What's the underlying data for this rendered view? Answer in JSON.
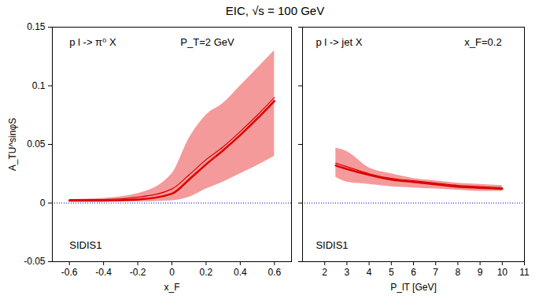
{
  "title": "EIC, √s = 100 GeV",
  "chart_data": [
    {
      "type": "line",
      "xlabel": "x_F",
      "ylabel": "A_TU^sinφS",
      "x": [
        -0.6,
        -0.4,
        -0.2,
        0,
        0.1,
        0.2,
        0.3,
        0.4,
        0.5,
        0.6
      ],
      "series": [
        {
          "color": "#dd0000",
          "values": [
            0.002,
            0.002,
            0.003,
            0.008,
            0.02,
            0.033,
            0.045,
            0.058,
            0.072,
            0.087
          ]
        },
        {
          "color": "#dd0000",
          "values": [
            0.003,
            0.003,
            0.005,
            0.012,
            0.024,
            0.037,
            0.048,
            0.061,
            0.075,
            0.09
          ]
        }
      ],
      "band": {
        "color": "#f07878",
        "lower": [
          0.001,
          0.001,
          0.001,
          0.002,
          0.005,
          0.012,
          0.018,
          0.025,
          0.032,
          0.04
        ],
        "upper": [
          0.003,
          0.004,
          0.008,
          0.025,
          0.055,
          0.075,
          0.085,
          0.1,
          0.115,
          0.13
        ]
      },
      "hline": {
        "value": 0,
        "color": "#0000cc",
        "line_style": "dotted"
      },
      "xlim": [
        -0.7,
        0.7
      ],
      "xticks": [
        -0.6,
        -0.4,
        -0.2,
        0,
        0.2,
        0.4,
        0.6
      ],
      "ylim": [
        -0.05,
        0.15
      ],
      "yticks": [
        -0.05,
        0,
        0.05,
        0.1,
        0.15
      ],
      "annotations": [
        {
          "text": "p l -> π⁰ X",
          "x": -0.6,
          "y": 0.137
        },
        {
          "text": "P_T=2 GeV",
          "x": 0.05,
          "y": 0.137
        },
        {
          "text": "SIDIS1",
          "x": -0.6,
          "y": -0.036
        }
      ]
    },
    {
      "type": "line",
      "xlabel": "P_lT [GeV]",
      "x": [
        2.5,
        3,
        4,
        5,
        6,
        7,
        8,
        9,
        10
      ],
      "series": [
        {
          "color": "#dd0000",
          "values": [
            0.032,
            0.029,
            0.024,
            0.02,
            0.018,
            0.016,
            0.014,
            0.013,
            0.012
          ]
        },
        {
          "color": "#dd0000",
          "values": [
            0.034,
            0.031,
            0.025,
            0.021,
            0.019,
            0.017,
            0.015,
            0.014,
            0.013
          ]
        }
      ],
      "band": {
        "color": "#f07878",
        "lower": [
          0.022,
          0.018,
          0.016,
          0.014,
          0.013,
          0.012,
          0.011,
          0.01,
          0.01
        ],
        "upper": [
          0.047,
          0.044,
          0.03,
          0.025,
          0.021,
          0.019,
          0.017,
          0.016,
          0.015
        ]
      },
      "hline": {
        "value": 0,
        "color": "#0000cc",
        "line_style": "dotted"
      },
      "xlim": [
        1,
        11
      ],
      "xticks": [
        2,
        3,
        4,
        5,
        6,
        7,
        8,
        9,
        10,
        11
      ],
      "ylim": [
        -0.05,
        0.15
      ],
      "yticks": [
        -0.05,
        0,
        0.05,
        0.1,
        0.15
      ],
      "tick_labels": "x",
      "annotations": [
        {
          "text": "p l -> jet X",
          "x": 1.6,
          "y": 0.137
        },
        {
          "text": "x_F=0.2",
          "x": 8.3,
          "y": 0.137
        },
        {
          "text": "SIDIS1",
          "x": 1.6,
          "y": -0.036
        }
      ]
    }
  ]
}
